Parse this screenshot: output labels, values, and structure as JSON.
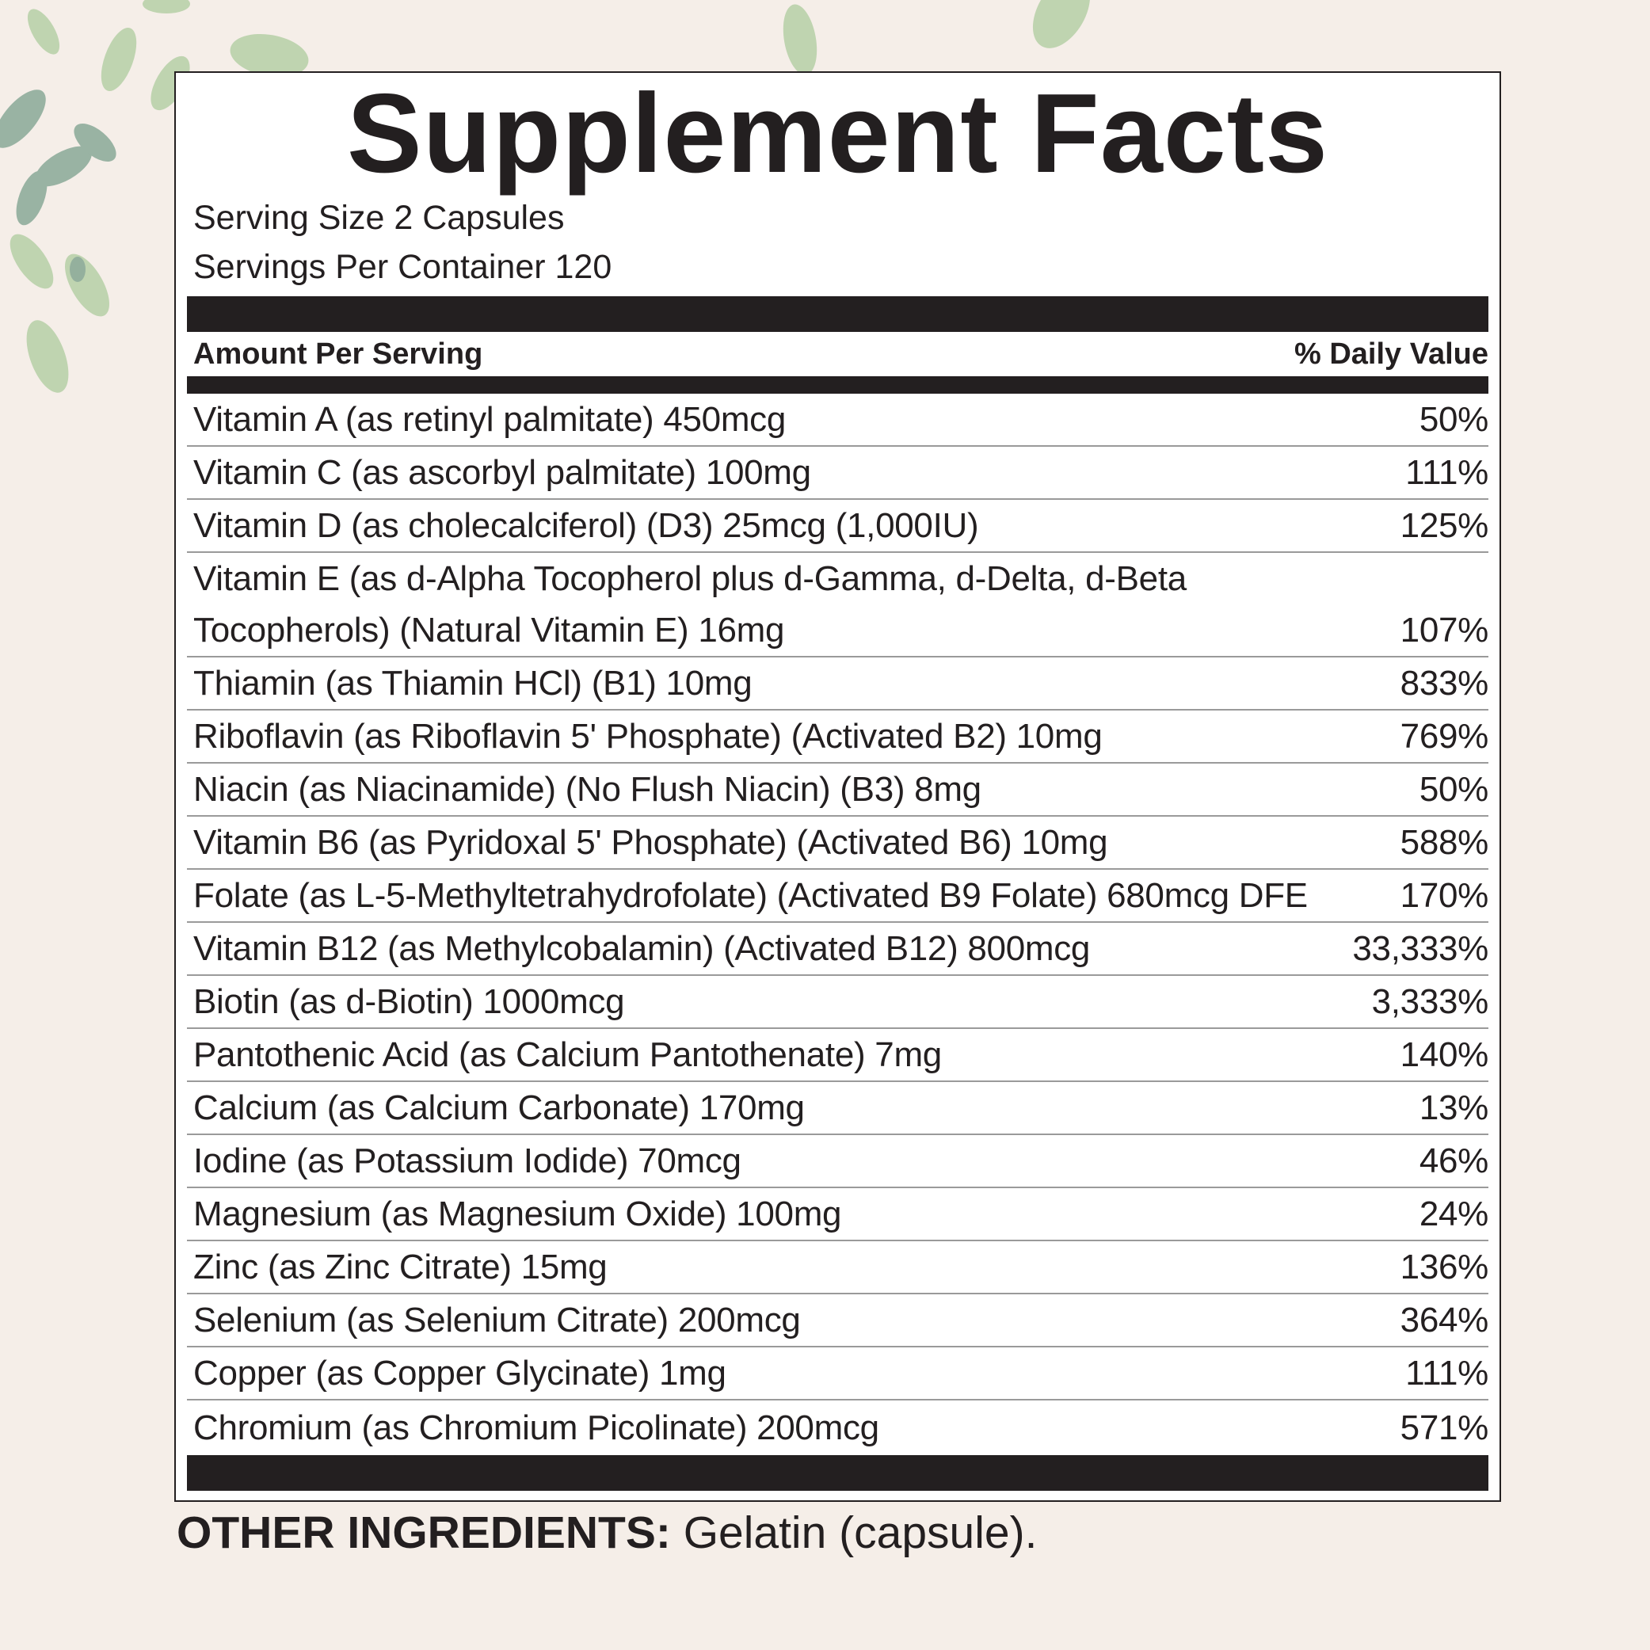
{
  "title": "Supplement Facts",
  "serving_size": "Serving Size 2 Capsules",
  "servings_per_container": "Servings Per Container 120",
  "header": {
    "amount": "Amount Per Serving",
    "daily_value": "% Daily Value"
  },
  "rows": [
    {
      "name": "Vitamin A (as retinyl palmitate) 450mcg",
      "dv": "50%"
    },
    {
      "name": "Vitamin C (as ascorbyl palmitate) 100mg",
      "dv": "111%"
    },
    {
      "name": "Vitamin D (as cholecalciferol) (D3) 25mcg (1,000IU)",
      "dv": "125%"
    },
    {
      "name": "Vitamin E (as d-Alpha Tocopherol plus d-Gamma, d-Delta, d-Beta Tocopherols) (Natural Vitamin E) 16mg",
      "dv": "107%"
    },
    {
      "name": "Thiamin (as Thiamin HCl) (B1) 10mg",
      "dv": "833%"
    },
    {
      "name": "Riboflavin (as Riboflavin 5' Phosphate) (Activated B2) 10mg",
      "dv": "769%"
    },
    {
      "name": "Niacin (as Niacinamide) (No Flush Niacin) (B3) 8mg",
      "dv": "50%"
    },
    {
      "name": "Vitamin B6 (as Pyridoxal 5' Phosphate) (Activated B6) 10mg",
      "dv": "588%"
    },
    {
      "name": "Folate (as L-5-Methyltetrahydrofolate) (Activated B9 Folate) 680mcg DFE",
      "dv": "170%"
    },
    {
      "name": "Vitamin B12 (as Methylcobalamin) (Activated B12) 800mcg",
      "dv": "33,333%"
    },
    {
      "name": "Biotin (as d-Biotin) 1000mcg",
      "dv": "3,333%"
    },
    {
      "name": "Pantothenic Acid (as Calcium Pantothenate) 7mg",
      "dv": "140%"
    },
    {
      "name": "Calcium (as Calcium Carbonate) 170mg",
      "dv": "13%"
    },
    {
      "name": "Iodine (as Potassium Iodide) 70mcg",
      "dv": "46%"
    },
    {
      "name": "Magnesium (as Magnesium Oxide) 100mg",
      "dv": "24%"
    },
    {
      "name": "Zinc (as Zinc Citrate) 15mg",
      "dv": "136%"
    },
    {
      "name": "Selenium (as Selenium Citrate) 200mcg",
      "dv": "364%"
    },
    {
      "name": "Copper (as Copper Glycinate) 1mg",
      "dv": "111%"
    },
    {
      "name": "Chromium (as Chromium Picolinate) 200mcg",
      "dv": "571%"
    }
  ],
  "other_ingredients": {
    "label": "OTHER INGREDIENTS:",
    "value": " Gelatin (capsule)."
  },
  "colors": {
    "background": "#f5eee8",
    "text": "#231f20",
    "leaf": "#a9c79a"
  },
  "decoration": "leaf-icon"
}
